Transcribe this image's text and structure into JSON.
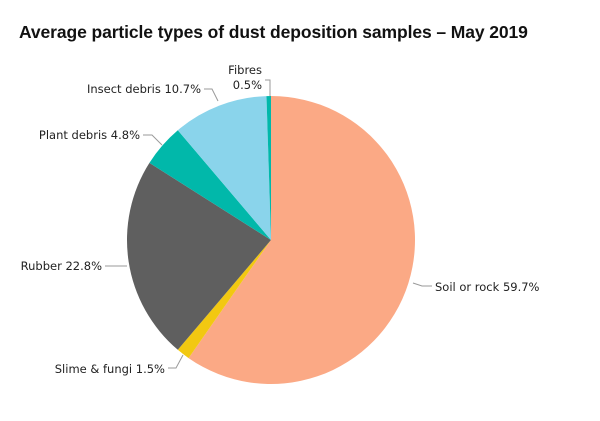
{
  "chart_data": {
    "type": "pie",
    "title": "Average particle types of dust deposition samples – May 2019",
    "start_angle": "12 o'clock",
    "direction": "clockwise",
    "legend": "none (inline labels with leader lines)",
    "slices": [
      {
        "label": "Soil or rock",
        "value": 59.7,
        "display": "Soil or rock 59.7%",
        "color": "#FBA985"
      },
      {
        "label": "Slime & fungi",
        "value": 1.5,
        "display": "Slime & fungi 1.5%",
        "color": "#F2C811"
      },
      {
        "label": "Rubber",
        "value": 22.8,
        "display": "Rubber 22.8%",
        "color": "#5F5F5F"
      },
      {
        "label": "Plant debris",
        "value": 4.8,
        "display": "Plant debris 4.8%",
        "color": "#01B8AA"
      },
      {
        "label": "Insect debris",
        "value": 10.7,
        "display": "Insect debris 10.7%",
        "color": "#8AD4EB"
      },
      {
        "label": "Fibres",
        "value": 0.5,
        "display_line1": "Fibres",
        "display_line2": "0.5%",
        "color": "#01B8AA"
      }
    ]
  },
  "labels": {
    "soil": "Soil or rock 59.7%",
    "slime": "Slime & fungi 1.5%",
    "rubber": "Rubber 22.8%",
    "plant": "Plant debris 4.8%",
    "insect": "Insect debris 10.7%",
    "fibres_line1": "Fibres",
    "fibres_line2": "0.5%"
  }
}
